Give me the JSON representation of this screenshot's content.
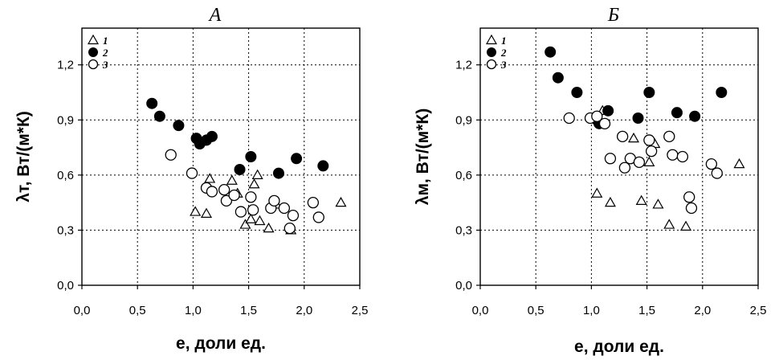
{
  "chart_data": [
    {
      "type": "scatter",
      "title": "А",
      "xlabel": "е, доли ед.",
      "ylabel": "λт, Вт/(м*К)",
      "xlim": [
        0,
        2.5
      ],
      "ylim": [
        0,
        1.4
      ],
      "x_ticks": [
        "0,0",
        "0,5",
        "1,0",
        "1,5",
        "2,0",
        "2,5"
      ],
      "y_ticks": [
        "0,0",
        "0,3",
        "0,6",
        "0,9",
        "1,2"
      ],
      "grid": true,
      "legend_position": "top-left",
      "series": [
        {
          "name": "1",
          "marker": "triangle-open",
          "points": [
            [
              1.02,
              0.4
            ],
            [
              1.12,
              0.39
            ],
            [
              1.15,
              0.58
            ],
            [
              1.35,
              0.57
            ],
            [
              1.4,
              0.5
            ],
            [
              1.47,
              0.33
            ],
            [
              1.52,
              0.36
            ],
            [
              1.55,
              0.55
            ],
            [
              1.58,
              0.6
            ],
            [
              1.6,
              0.35
            ],
            [
              1.68,
              0.31
            ],
            [
              1.75,
              0.44
            ],
            [
              1.88,
              0.3
            ],
            [
              2.33,
              0.45
            ]
          ]
        },
        {
          "name": "2",
          "marker": "circle-filled",
          "points": [
            [
              0.63,
              0.99
            ],
            [
              0.7,
              0.92
            ],
            [
              0.87,
              0.87
            ],
            [
              1.03,
              0.8
            ],
            [
              1.06,
              0.77
            ],
            [
              1.12,
              0.79
            ],
            [
              1.17,
              0.81
            ],
            [
              1.42,
              0.63
            ],
            [
              1.52,
              0.7
            ],
            [
              1.77,
              0.61
            ],
            [
              1.93,
              0.69
            ],
            [
              2.17,
              0.65
            ]
          ]
        },
        {
          "name": "3",
          "marker": "circle-open",
          "points": [
            [
              0.8,
              0.71
            ],
            [
              0.99,
              0.61
            ],
            [
              1.12,
              0.53
            ],
            [
              1.17,
              0.51
            ],
            [
              1.28,
              0.52
            ],
            [
              1.3,
              0.46
            ],
            [
              1.37,
              0.49
            ],
            [
              1.43,
              0.4
            ],
            [
              1.52,
              0.48
            ],
            [
              1.54,
              0.41
            ],
            [
              1.7,
              0.42
            ],
            [
              1.73,
              0.46
            ],
            [
              1.82,
              0.42
            ],
            [
              1.87,
              0.31
            ],
            [
              1.9,
              0.38
            ],
            [
              2.08,
              0.45
            ],
            [
              2.13,
              0.37
            ]
          ]
        }
      ]
    },
    {
      "type": "scatter",
      "title": "Б",
      "xlabel": "е, доли ед.",
      "ylabel": "λм, Вт/(м*К)",
      "xlim": [
        0,
        2.5
      ],
      "ylim": [
        0,
        1.4
      ],
      "x_ticks": [
        "0,0",
        "0,5",
        "1,0",
        "1,5",
        "2,0",
        "2,5"
      ],
      "y_ticks": [
        "0,0",
        "0,3",
        "0,6",
        "0,9",
        "1,2"
      ],
      "grid": true,
      "legend_position": "top-left",
      "series": [
        {
          "name": "1",
          "marker": "triangle-open",
          "points": [
            [
              1.05,
              0.5
            ],
            [
              1.1,
              0.95
            ],
            [
              1.17,
              0.45
            ],
            [
              1.38,
              0.8
            ],
            [
              1.45,
              0.46
            ],
            [
              1.52,
              0.67
            ],
            [
              1.57,
              0.77
            ],
            [
              1.6,
              0.44
            ],
            [
              1.7,
              0.33
            ],
            [
              1.85,
              0.32
            ],
            [
              2.33,
              0.66
            ]
          ]
        },
        {
          "name": "2",
          "marker": "circle-filled",
          "points": [
            [
              0.63,
              1.27
            ],
            [
              0.7,
              1.13
            ],
            [
              0.87,
              1.05
            ],
            [
              1.05,
              0.9
            ],
            [
              1.07,
              0.88
            ],
            [
              1.15,
              0.95
            ],
            [
              1.42,
              0.91
            ],
            [
              1.52,
              1.05
            ],
            [
              1.77,
              0.94
            ],
            [
              1.93,
              0.92
            ],
            [
              2.17,
              1.05
            ]
          ]
        },
        {
          "name": "3",
          "marker": "circle-open",
          "points": [
            [
              0.8,
              0.91
            ],
            [
              0.99,
              0.91
            ],
            [
              1.05,
              0.92
            ],
            [
              1.12,
              0.88
            ],
            [
              1.17,
              0.69
            ],
            [
              1.28,
              0.81
            ],
            [
              1.3,
              0.64
            ],
            [
              1.35,
              0.69
            ],
            [
              1.43,
              0.67
            ],
            [
              1.52,
              0.79
            ],
            [
              1.54,
              0.73
            ],
            [
              1.7,
              0.81
            ],
            [
              1.73,
              0.71
            ],
            [
              1.82,
              0.7
            ],
            [
              1.88,
              0.48
            ],
            [
              1.9,
              0.42
            ],
            [
              2.08,
              0.66
            ],
            [
              2.13,
              0.61
            ]
          ]
        }
      ]
    }
  ]
}
